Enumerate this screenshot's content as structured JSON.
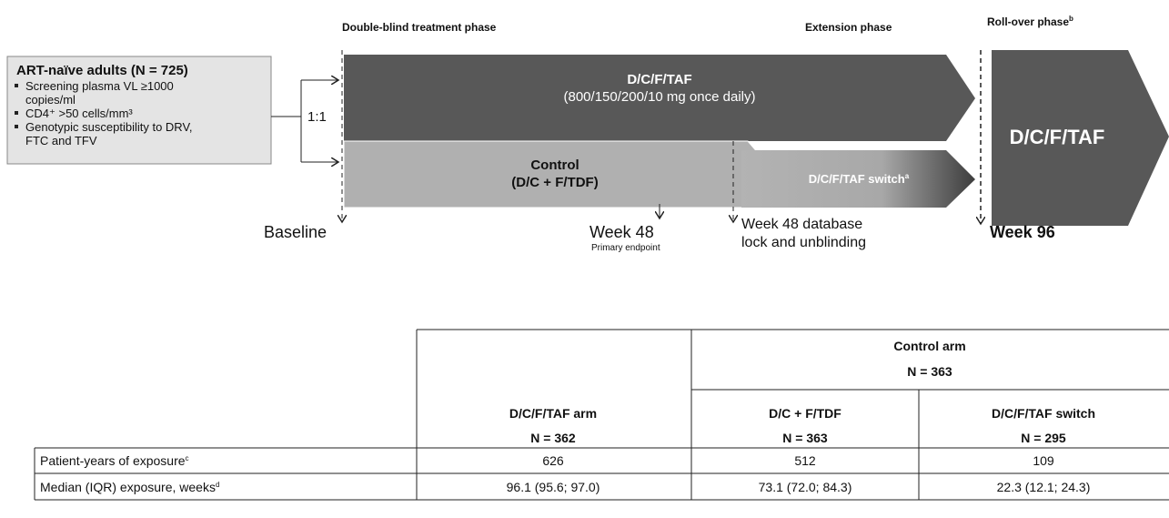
{
  "phases": [
    {
      "label": "Double-blind treatment phase"
    },
    {
      "label": "Extension phase"
    },
    {
      "label": "Roll-over phase",
      "note": "b"
    }
  ],
  "population": {
    "title": "ART-naïve adults (N = 725)",
    "bullets": [
      [
        "Screening plasma VL ≥1000",
        "copies/ml"
      ],
      [
        "CD4⁺ >50 cells/mm³"
      ],
      [
        "Genotypic susceptibility to DRV,",
        "FTC and TFV"
      ]
    ]
  },
  "randomization": "1:1",
  "arms": {
    "taf": {
      "name": "D/C/F/TAF",
      "dose": "(800/150/200/10 mg once daily)"
    },
    "control": {
      "name": "Control",
      "regimen": "(D/C + F/TDF)"
    },
    "switch": {
      "name": "D/C/F/TAF switch",
      "note": "a"
    },
    "rollover": {
      "name": "D/C/F/TAF"
    }
  },
  "timepoints": {
    "baseline": "Baseline",
    "week48": "Week 48",
    "endpoint": "Primary endpoint",
    "lock": [
      "Week 48 database",
      "lock and unblinding"
    ],
    "week96": "Week 96"
  },
  "table": {
    "group": {
      "label": "Control arm",
      "n": "N = 363"
    },
    "columns": [
      {
        "label": "D/C/F/TAF arm",
        "n": "N = 362"
      },
      {
        "label": "D/C + F/TDF",
        "n": "N = 363"
      },
      {
        "label": "D/C/F/TAF switch",
        "n": "N = 295"
      }
    ],
    "rows": [
      {
        "label": "Patient-years of exposure",
        "note": "c",
        "cells": [
          "626",
          "512",
          "109"
        ]
      },
      {
        "label": "Median (IQR) exposure, weeks",
        "note": "d",
        "cells": [
          "96.1 (95.6; 97.0)",
          "73.1 (72.0; 84.3)",
          "22.3 (12.1; 24.3)"
        ]
      }
    ]
  }
}
